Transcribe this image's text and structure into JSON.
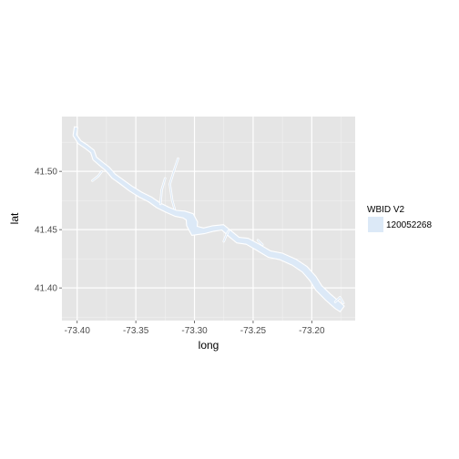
{
  "chart_data": {
    "type": "map",
    "xlabel": "long",
    "ylabel": "lat",
    "xlim": [
      -73.413,
      -73.163
    ],
    "ylim": [
      41.372,
      41.547
    ],
    "x_ticks": [
      -73.4,
      -73.35,
      -73.3,
      -73.25,
      -73.2
    ],
    "x_tick_labels": [
      "-73.40",
      "-73.35",
      "-73.30",
      "-73.25",
      "-73.20"
    ],
    "y_ticks": [
      41.4,
      41.45,
      41.5
    ],
    "y_tick_labels": [
      "41.40",
      "41.45",
      "41.50"
    ],
    "grid": true,
    "legend": {
      "title": "WBID V2",
      "placement": "right",
      "entries": [
        {
          "label": "120052268",
          "color": "#dce9f7"
        }
      ]
    },
    "colors": {
      "panel": "#e5e5e5",
      "grid_major": "#ffffff",
      "grid_minor": "#f2f2f2",
      "fill": "#dce9f7",
      "outline": "#ffffff"
    },
    "series": [
      {
        "label": "120052268",
        "centerline": [
          [
            -73.401,
            41.538
          ],
          [
            -73.402,
            41.531
          ],
          [
            -73.398,
            41.525
          ],
          [
            -73.392,
            41.521
          ],
          [
            -73.387,
            41.517
          ],
          [
            -73.385,
            41.511
          ],
          [
            -73.379,
            41.506
          ],
          [
            -73.374,
            41.502
          ],
          [
            -73.369,
            41.496
          ],
          [
            -73.362,
            41.491
          ],
          [
            -73.354,
            41.485
          ],
          [
            -73.346,
            41.48
          ],
          [
            -73.338,
            41.476
          ],
          [
            -73.331,
            41.471
          ],
          [
            -73.323,
            41.467
          ],
          [
            -73.316,
            41.464
          ],
          [
            -73.309,
            41.463
          ],
          [
            -73.304,
            41.461
          ],
          [
            -73.302,
            41.455
          ],
          [
            -73.3,
            41.449
          ],
          [
            -73.292,
            41.449
          ],
          [
            -73.284,
            41.451
          ],
          [
            -73.276,
            41.452
          ],
          [
            -73.269,
            41.446
          ],
          [
            -73.263,
            41.441
          ],
          [
            -73.255,
            41.44
          ],
          [
            -73.246,
            41.435
          ],
          [
            -73.236,
            41.429
          ],
          [
            -73.226,
            41.427
          ],
          [
            -73.215,
            41.422
          ],
          [
            -73.206,
            41.416
          ],
          [
            -73.199,
            41.408
          ],
          [
            -73.194,
            41.4
          ],
          [
            -73.186,
            41.392
          ],
          [
            -73.178,
            41.385
          ],
          [
            -73.174,
            41.382
          ]
        ],
        "widths": [
          0.0015,
          0.0016,
          0.0017,
          0.0018,
          0.0018,
          0.0019,
          0.002,
          0.0021,
          0.0022,
          0.0022,
          0.0023,
          0.0024,
          0.0024,
          0.0025,
          0.0025,
          0.0026,
          0.003,
          0.004,
          0.005,
          0.0045,
          0.0025,
          0.0024,
          0.0024,
          0.0025,
          0.0026,
          0.0027,
          0.0028,
          0.0029,
          0.003,
          0.003,
          0.0031,
          0.0032,
          0.0032,
          0.0033,
          0.0034,
          0.003
        ],
        "tributaries": [
          [
            [
              -73.325,
              41.494
            ],
            [
              -73.328,
              41.484
            ],
            [
              -73.329,
              41.472
            ]
          ],
          [
            [
              -73.314,
              41.511
            ],
            [
              -73.318,
              41.499
            ],
            [
              -73.321,
              41.489
            ],
            [
              -73.319,
              41.475
            ],
            [
              -73.317,
              41.468
            ]
          ],
          [
            [
              -73.387,
              41.492
            ],
            [
              -73.382,
              41.496
            ],
            [
              -73.379,
              41.5
            ]
          ],
          [
            [
              -73.275,
              41.44
            ],
            [
              -73.273,
              41.445
            ],
            [
              -73.271,
              41.449
            ]
          ],
          [
            [
              -73.246,
              41.441
            ],
            [
              -73.242,
              41.437
            ]
          ],
          [
            [
              -73.18,
              41.388
            ],
            [
              -73.176,
              41.392
            ],
            [
              -73.173,
              41.387
            ]
          ]
        ]
      }
    ]
  }
}
